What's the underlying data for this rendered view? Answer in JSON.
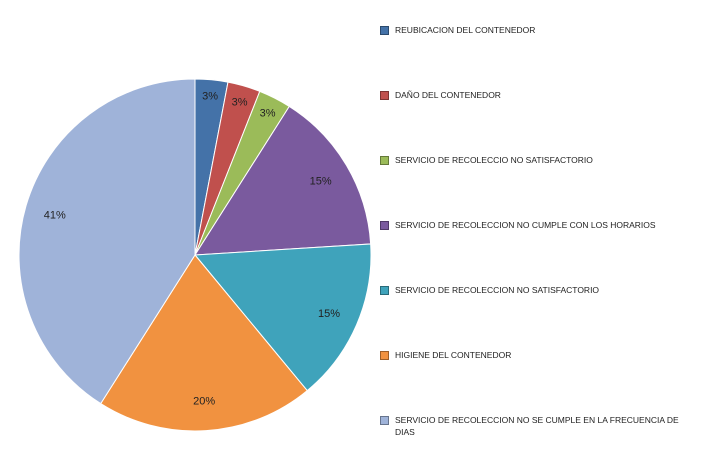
{
  "chart_data": {
    "type": "pie",
    "title": "",
    "legend_position": "right",
    "slices": [
      {
        "label": "REUBICACION DEL CONTENEDOR",
        "value": 3,
        "display": "3%",
        "color": "#4472a8"
      },
      {
        "label": "DAÑO DEL CONTENEDOR",
        "value": 3,
        "display": "3%",
        "color": "#c0504d"
      },
      {
        "label": "SERVICIO DE RECOLECCIO NO SATISFACTORIO",
        "value": 3,
        "display": "3%",
        "color": "#9bbb59"
      },
      {
        "label": "SERVICIO DE RECOLECCION NO CUMPLE CON LOS HORARIOS",
        "value": 15,
        "display": "15%",
        "color": "#7a5a9e"
      },
      {
        "label": "SERVICIO DE RECOLECCION NO SATISFACTORIO",
        "value": 15,
        "display": "15%",
        "color": "#3fa3bb"
      },
      {
        "label": "HIGIENE DEL CONTENEDOR",
        "value": 20,
        "display": "20%",
        "color": "#f19240"
      },
      {
        "label": "SERVICIO DE RECOLECCION NO SE CUMPLE EN LA FRECUENCIA DE DIAS",
        "value": 41,
        "display": "41%",
        "color": "#9fb3d9"
      }
    ]
  }
}
